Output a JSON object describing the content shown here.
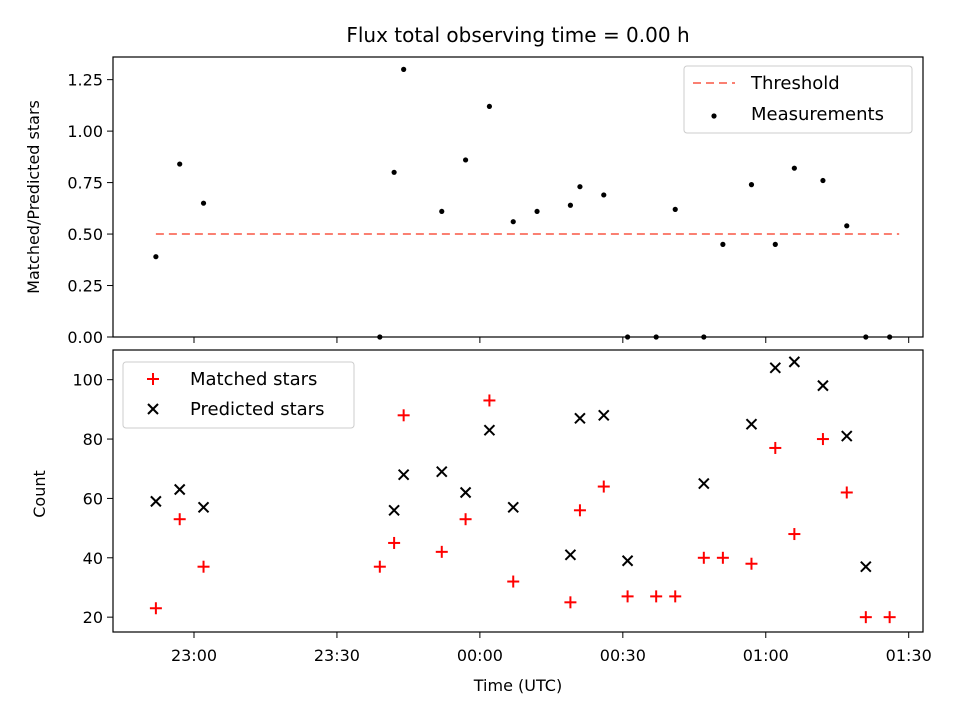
{
  "chart_data": [
    {
      "type": "scatter",
      "title": "Flux total observing time = 0.00 h",
      "ylabel": "Matched/Predicted stars",
      "xlabel": "",
      "ylim": [
        0,
        1.36
      ],
      "xlim": [
        "22:43",
        "01:33"
      ],
      "yticks": [
        "0.00",
        "0.25",
        "0.50",
        "0.75",
        "1.00",
        "1.25"
      ],
      "ytick_values": [
        0,
        0.25,
        0.5,
        0.75,
        1.0,
        1.25
      ],
      "legend_position": "upper-right",
      "threshold": {
        "name": "Threshold",
        "value": 0.5,
        "x_range": [
          "22:52",
          "01:28"
        ],
        "color": "#fa8072"
      },
      "series": [
        {
          "name": "Measurements",
          "color": "#000000",
          "x": [
            "22:52",
            "22:57",
            "23:02",
            "23:39",
            "23:42",
            "23:44",
            "23:52",
            "23:57",
            "24:02",
            "24:07",
            "24:12",
            "24:19",
            "24:21",
            "24:26",
            "24:31",
            "24:37",
            "24:41",
            "24:47",
            "24:51",
            "24:57",
            "25:02",
            "25:06",
            "25:12",
            "25:17",
            "25:21",
            "25:26"
          ],
          "y": [
            0.39,
            0.84,
            0.65,
            0.0,
            0.8,
            1.3,
            0.61,
            0.86,
            1.12,
            0.56,
            0.61,
            0.64,
            0.73,
            0.69,
            0.0,
            0.0,
            0.62,
            0.0,
            0.45,
            0.74,
            0.45,
            0.82,
            0.76,
            0.54,
            0.0,
            0.0
          ]
        }
      ]
    },
    {
      "type": "scatter",
      "title": "",
      "ylabel": "Count",
      "xlabel": "Time (UTC)",
      "ylim": [
        15,
        110
      ],
      "xlim": [
        "22:43",
        "01:33"
      ],
      "xticks": [
        "23:00",
        "23:30",
        "00:00",
        "00:30",
        "01:00",
        "01:30"
      ],
      "yticks": [
        "20",
        "40",
        "60",
        "80",
        "100"
      ],
      "ytick_values": [
        20,
        40,
        60,
        80,
        100
      ],
      "legend_position": "upper-left",
      "series": [
        {
          "name": "Matched stars",
          "marker": "+",
          "color": "#ff0000",
          "x": [
            "22:52",
            "22:57",
            "23:02",
            "23:39",
            "23:42",
            "23:44",
            "23:52",
            "23:57",
            "24:02",
            "24:07",
            "24:19",
            "24:21",
            "24:26",
            "24:31",
            "24:37",
            "24:41",
            "24:47",
            "24:51",
            "24:57",
            "25:02",
            "25:06",
            "25:12",
            "25:17",
            "25:21",
            "25:26"
          ],
          "y": [
            23,
            53,
            37,
            37,
            45,
            88,
            42,
            53,
            93,
            32,
            25,
            56,
            64,
            27,
            27,
            27,
            40,
            40,
            38,
            77,
            48,
            80,
            62,
            20,
            20
          ]
        },
        {
          "name": "Predicted stars",
          "marker": "x",
          "color": "#000000",
          "x": [
            "22:52",
            "22:57",
            "23:02",
            "23:42",
            "23:44",
            "23:52",
            "23:57",
            "24:02",
            "24:07",
            "24:19",
            "24:21",
            "24:26",
            "24:31",
            "24:47",
            "24:57",
            "25:02",
            "25:06",
            "25:12",
            "25:17",
            "25:21"
          ],
          "y": [
            59,
            63,
            57,
            56,
            68,
            69,
            62,
            83,
            57,
            41,
            87,
            88,
            39,
            65,
            85,
            104,
            106,
            98,
            81,
            37
          ]
        }
      ]
    }
  ]
}
